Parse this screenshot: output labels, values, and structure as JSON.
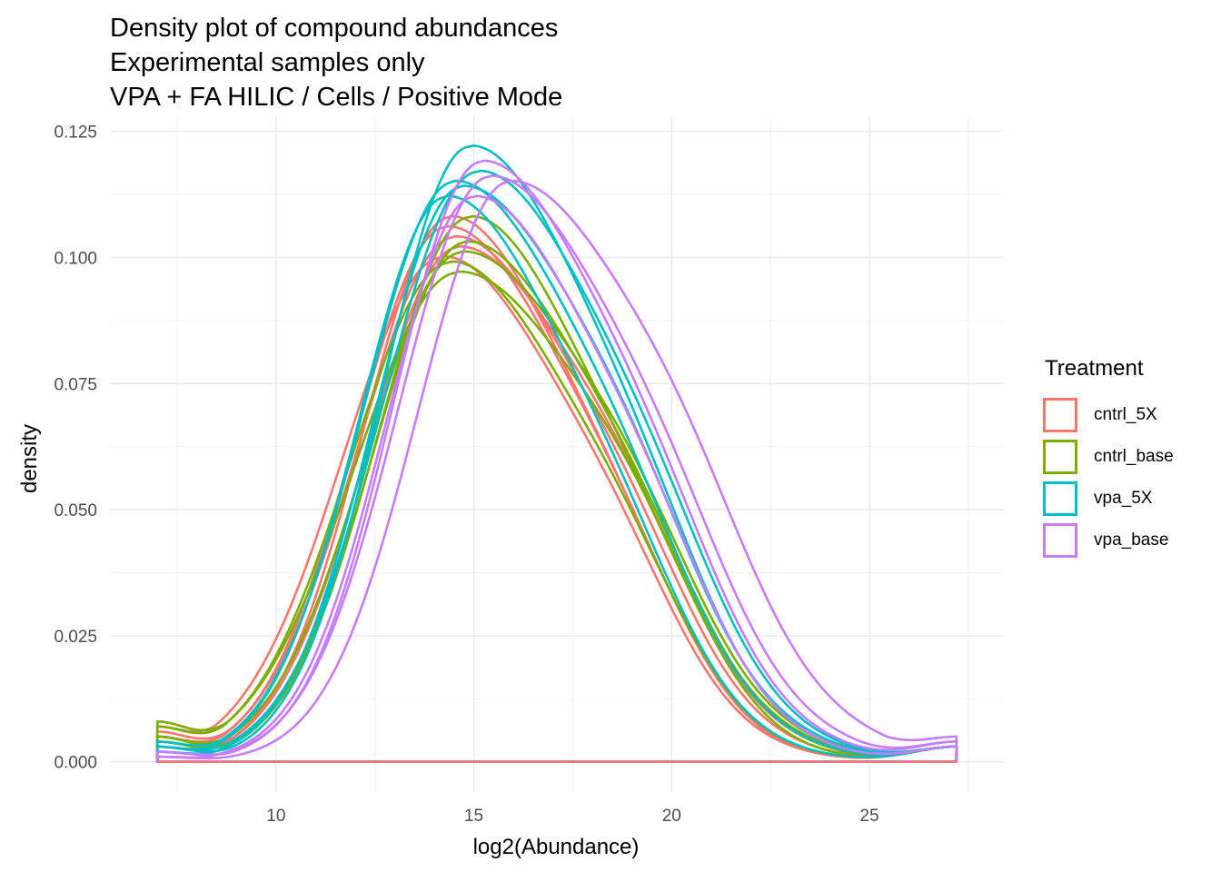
{
  "title": {
    "line1": "Density plot of compound abundances",
    "line2": "Experimental samples only",
    "line3": "VPA + FA HILIC / Cells / Positive Mode"
  },
  "chart_data": {
    "type": "line",
    "xlabel": "log2(Abundance)",
    "ylabel": "density",
    "xlim": [
      5.8,
      28.4
    ],
    "ylim": [
      -0.006,
      0.128
    ],
    "x_ticks": [
      10,
      15,
      20,
      25
    ],
    "y_ticks": [
      0.0,
      0.025,
      0.05,
      0.075,
      0.1,
      0.125
    ],
    "y_tick_labels": [
      "0.000",
      "0.025",
      "0.050",
      "0.075",
      "0.100",
      "0.125"
    ],
    "grid": true,
    "legend_position": "right",
    "legend_title": "Treatment",
    "x_range_of_curves": [
      7.0,
      27.2
    ],
    "groups": [
      {
        "name": "cntrl_5X",
        "color": "#F8766D",
        "curves": [
          {
            "mu": 14.3,
            "sigma_left": 2.3,
            "sigma_right": 3.3,
            "peak": 0.106,
            "y_start": 0.005,
            "y_end": 0.003
          },
          {
            "mu": 14.5,
            "sigma_left": 2.4,
            "sigma_right": 3.4,
            "peak": 0.104,
            "y_start": 0.006,
            "y_end": 0.003
          },
          {
            "mu": 14.4,
            "sigma_left": 2.2,
            "sigma_right": 3.2,
            "peak": 0.108,
            "y_start": 0.004,
            "y_end": 0.003
          },
          {
            "mu": 14.6,
            "sigma_left": 2.3,
            "sigma_right": 3.5,
            "peak": 0.102,
            "y_start": 0.005,
            "y_end": 0.003
          },
          {
            "mu": 14.2,
            "sigma_left": 2.5,
            "sigma_right": 3.3,
            "peak": 0.1,
            "y_start": 0.007,
            "y_end": 0.003
          }
        ]
      },
      {
        "name": "cntrl_base",
        "color": "#7CAE00",
        "curves": [
          {
            "mu": 14.6,
            "sigma_left": 2.6,
            "sigma_right": 3.6,
            "peak": 0.097,
            "y_start": 0.008,
            "y_end": 0.003
          },
          {
            "mu": 14.4,
            "sigma_left": 2.5,
            "sigma_right": 3.3,
            "peak": 0.099,
            "y_start": 0.007,
            "y_end": 0.003
          },
          {
            "mu": 14.8,
            "sigma_left": 2.3,
            "sigma_right": 3.4,
            "peak": 0.103,
            "y_start": 0.005,
            "y_end": 0.003
          },
          {
            "mu": 14.9,
            "sigma_left": 2.3,
            "sigma_right": 3.2,
            "peak": 0.108,
            "y_start": 0.004,
            "y_end": 0.003
          },
          {
            "mu": 14.7,
            "sigma_left": 2.4,
            "sigma_right": 3.6,
            "peak": 0.101,
            "y_start": 0.005,
            "y_end": 0.003
          }
        ]
      },
      {
        "name": "vpa_5X",
        "color": "#00BFC4",
        "curves": [
          {
            "mu": 14.9,
            "sigma_left": 2.2,
            "sigma_right": 3.4,
            "peak": 0.122,
            "y_start": 0.003,
            "y_end": 0.003
          },
          {
            "mu": 14.5,
            "sigma_left": 2.3,
            "sigma_right": 3.5,
            "peak": 0.115,
            "y_start": 0.004,
            "y_end": 0.003
          },
          {
            "mu": 14.3,
            "sigma_left": 2.2,
            "sigma_right": 3.3,
            "peak": 0.112,
            "y_start": 0.003,
            "y_end": 0.003
          },
          {
            "mu": 14.7,
            "sigma_left": 2.2,
            "sigma_right": 3.6,
            "peak": 0.114,
            "y_start": 0.002,
            "y_end": 0.003
          },
          {
            "mu": 15.1,
            "sigma_left": 2.4,
            "sigma_right": 3.5,
            "peak": 0.117,
            "y_start": 0.003,
            "y_end": 0.003
          }
        ]
      },
      {
        "name": "vpa_base",
        "color": "#C77CFF",
        "curves": [
          {
            "mu": 15.9,
            "sigma_left": 2.3,
            "sigma_right": 3.8,
            "peak": 0.115,
            "y_start": 0.001,
            "y_end": 0.005
          },
          {
            "mu": 15.2,
            "sigma_left": 2.2,
            "sigma_right": 3.5,
            "peak": 0.119,
            "y_start": 0.002,
            "y_end": 0.004
          },
          {
            "mu": 15.4,
            "sigma_left": 2.3,
            "sigma_right": 3.6,
            "peak": 0.116,
            "y_start": 0.002,
            "y_end": 0.004
          },
          {
            "mu": 15.0,
            "sigma_left": 2.2,
            "sigma_right": 3.4,
            "peak": 0.112,
            "y_start": 0.001,
            "y_end": 0.003
          }
        ]
      }
    ]
  }
}
